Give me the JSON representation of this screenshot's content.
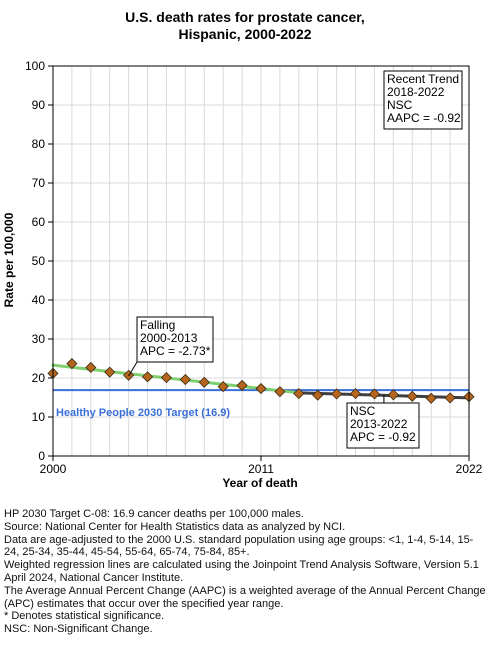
{
  "chart_data": {
    "type": "line",
    "title_line1": "U.S. death rates for prostate cancer,",
    "title_line2": "Hispanic,  2000-2022",
    "xlabel": "Year of death",
    "ylabel": "Rate per 100,000",
    "xlim": [
      2000,
      2022
    ],
    "ylim": [
      0,
      100
    ],
    "x_ticks": [
      "2000",
      "2011",
      "2022"
    ],
    "y_ticks": [
      "0",
      "10",
      "20",
      "30",
      "40",
      "50",
      "60",
      "70",
      "80",
      "90",
      "100"
    ],
    "grid": true,
    "observed": {
      "x": [
        2000,
        2001,
        2002,
        2003,
        2004,
        2005,
        2006,
        2007,
        2008,
        2009,
        2010,
        2011,
        2012,
        2013,
        2014,
        2015,
        2016,
        2017,
        2018,
        2019,
        2020,
        2021,
        2022
      ],
      "y": [
        21.2,
        23.7,
        22.7,
        21.5,
        20.7,
        20.3,
        20.1,
        19.6,
        18.9,
        17.8,
        18.1,
        17.3,
        16.5,
        16.0,
        15.6,
        15.9,
        16.0,
        15.9,
        15.7,
        15.3,
        14.8,
        14.9,
        15.2
      ]
    },
    "trend_segments": [
      {
        "x": [
          2000,
          2013
        ],
        "y": [
          23.3,
          16.2
        ],
        "color": "#7fcf70"
      },
      {
        "x": [
          2013,
          2022
        ],
        "y": [
          16.2,
          14.9
        ],
        "color": "#404040"
      }
    ],
    "target": {
      "value": 16.9,
      "label": "Healthy People 2030 Target (16.9)",
      "color": "#3a6fd8"
    },
    "marker_color": "#b5651d",
    "annotations": {
      "recent": [
        "Recent Trend",
        "2018-2022",
        "NSC",
        "AAPC = -0.92"
      ],
      "falling": [
        "Falling",
        "2000-2013",
        "APC = -2.73*"
      ],
      "nsc": [
        "NSC",
        "2013-2022",
        "APC = -0.92"
      ]
    }
  },
  "footnotes": [
    "HP 2030 Target C-08: 16.9 cancer deaths per 100,000 males.",
    "Source: National Center for Health Statistics data as analyzed by NCI.",
    "Data are age-adjusted to the 2000 U.S. standard population using age groups: <1, 1-4, 5-14, 15-24, 25-34, 35-44, 45-54, 55-64, 65-74, 75-84, 85+.",
    "Weighted regression lines are calculated using the Joinpoint Trend Analysis Software, Version 5.1 April 2024, National Cancer Institute.",
    "The Average Annual Percent Change (AAPC) is a weighted average of the Annual Percent Change (APC) estimates that occur over the specified year range.",
    "* Denotes statistical significance.",
    "NSC: Non-Significant Change."
  ]
}
